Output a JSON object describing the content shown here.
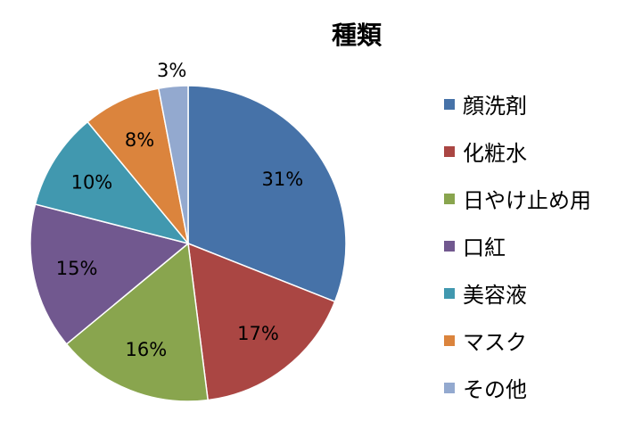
{
  "chart_data": {
    "type": "pie",
    "title": "種類",
    "categories": [
      "顔洗剤",
      "化粧水",
      "日やけ止め用",
      "口紅",
      "美容液",
      "マスク",
      "その他"
    ],
    "values": [
      31,
      17,
      16,
      15,
      10,
      8,
      3
    ],
    "value_labels": [
      "31%",
      "17%",
      "16%",
      "15%",
      "10%",
      "8%",
      "3%"
    ],
    "colors": [
      "#4672a8",
      "#aa4643",
      "#89a54e",
      "#71588f",
      "#4198af",
      "#db843d",
      "#93a9cf"
    ],
    "legend_position": "right",
    "slice_border_color": "#ffffff"
  }
}
